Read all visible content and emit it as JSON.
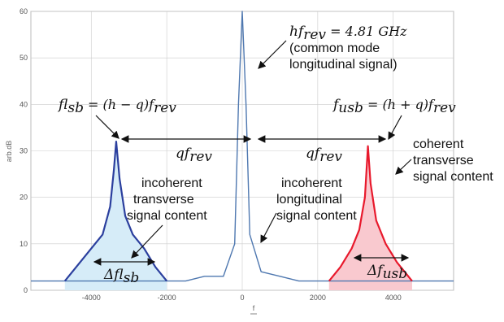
{
  "chart_data": {
    "type": "line",
    "xlabel": "f",
    "ylabel": "arb.dB",
    "xlim": [
      -5600,
      5600
    ],
    "ylim": [
      0,
      60
    ],
    "x_ticks": [
      "-4000",
      "-2000",
      "0",
      "2000",
      "4000"
    ],
    "x_tick_values": [
      -4000,
      -2000,
      0,
      2000,
      4000
    ],
    "y_ticks": [
      "0",
      "10",
      "20",
      "30",
      "40",
      "50",
      "60"
    ],
    "y_tick_values": [
      0,
      10,
      20,
      30,
      40,
      50,
      60
    ],
    "grid": true,
    "colors": {
      "spectrum": "#4f78b0",
      "lsb": "#2b3f9e",
      "usb": "#e8192c",
      "lsb_fill": "#d6ecf8",
      "usb_fill": "#f9c9cf",
      "grid": "#cccccc"
    },
    "series": [
      {
        "name": "spectrum",
        "x": [
          -5600,
          -5000,
          -4500,
          -4000,
          -3500,
          -3000,
          -2500,
          -2000,
          -1500,
          -1000,
          -500,
          -200,
          -100,
          0,
          100,
          200,
          500,
          1000,
          1500,
          2000,
          2500,
          3000,
          3500,
          4000,
          4500,
          5000,
          5600
        ],
        "y": [
          2,
          2,
          2,
          2,
          2,
          2,
          2,
          2,
          2,
          3,
          3,
          10,
          40,
          60,
          40,
          12,
          4,
          3,
          2,
          2,
          2,
          2,
          2,
          2,
          2,
          2,
          2
        ]
      },
      {
        "name": "lower sideband",
        "x": [
          -4700,
          -4400,
          -4000,
          -3700,
          -3500,
          -3400,
          -3340,
          -3250,
          -3100,
          -2900,
          -2600,
          -2300,
          -2000
        ],
        "y": [
          2,
          5,
          9,
          12,
          18,
          26,
          32,
          24,
          16,
          12,
          9,
          5,
          2
        ]
      },
      {
        "name": "upper sideband",
        "x": [
          2300,
          2600,
          2900,
          3100,
          3250,
          3330,
          3400,
          3550,
          3800,
          4100,
          4500
        ],
        "y": [
          2,
          5,
          9,
          13,
          20,
          31,
          23,
          15,
          10,
          6,
          2
        ]
      }
    ],
    "annotations": {
      "hf_rev": "hf",
      "hf_rev_sub": "rev",
      "hf_rev_value": " = 4.81 GHz",
      "common_mode_1": "(common mode",
      "common_mode_2": "longitudinal signal)",
      "f_lsb": "f",
      "f_lsb_sub": "lsb",
      "f_lsb_eq": " = (h − q)f",
      "f_lsb_eq_sub": "rev",
      "f_usb": "f",
      "f_usb_sub": "usb",
      "f_usb_eq": " = (h + q)f",
      "f_usb_eq_sub": "rev",
      "qf_left": "qf",
      "qf_left_sub": "rev",
      "qf_right": "qf",
      "qf_right_sub": "rev",
      "incoherent_transverse_1": "incoherent",
      "incoherent_transverse_2": "transverse",
      "incoherent_transverse_3": "signal content",
      "incoherent_longitudinal_1": "incoherent",
      "incoherent_longitudinal_2": "longitudinal",
      "incoherent_longitudinal_3": "signal content",
      "coherent_transverse_1": "coherent",
      "coherent_transverse_2": "transverse",
      "coherent_transverse_3": "signal content",
      "delta_lsb": "Δf",
      "delta_lsb_sub": "lsb",
      "delta_usb": "Δf",
      "delta_usb_sub": "usb"
    }
  }
}
